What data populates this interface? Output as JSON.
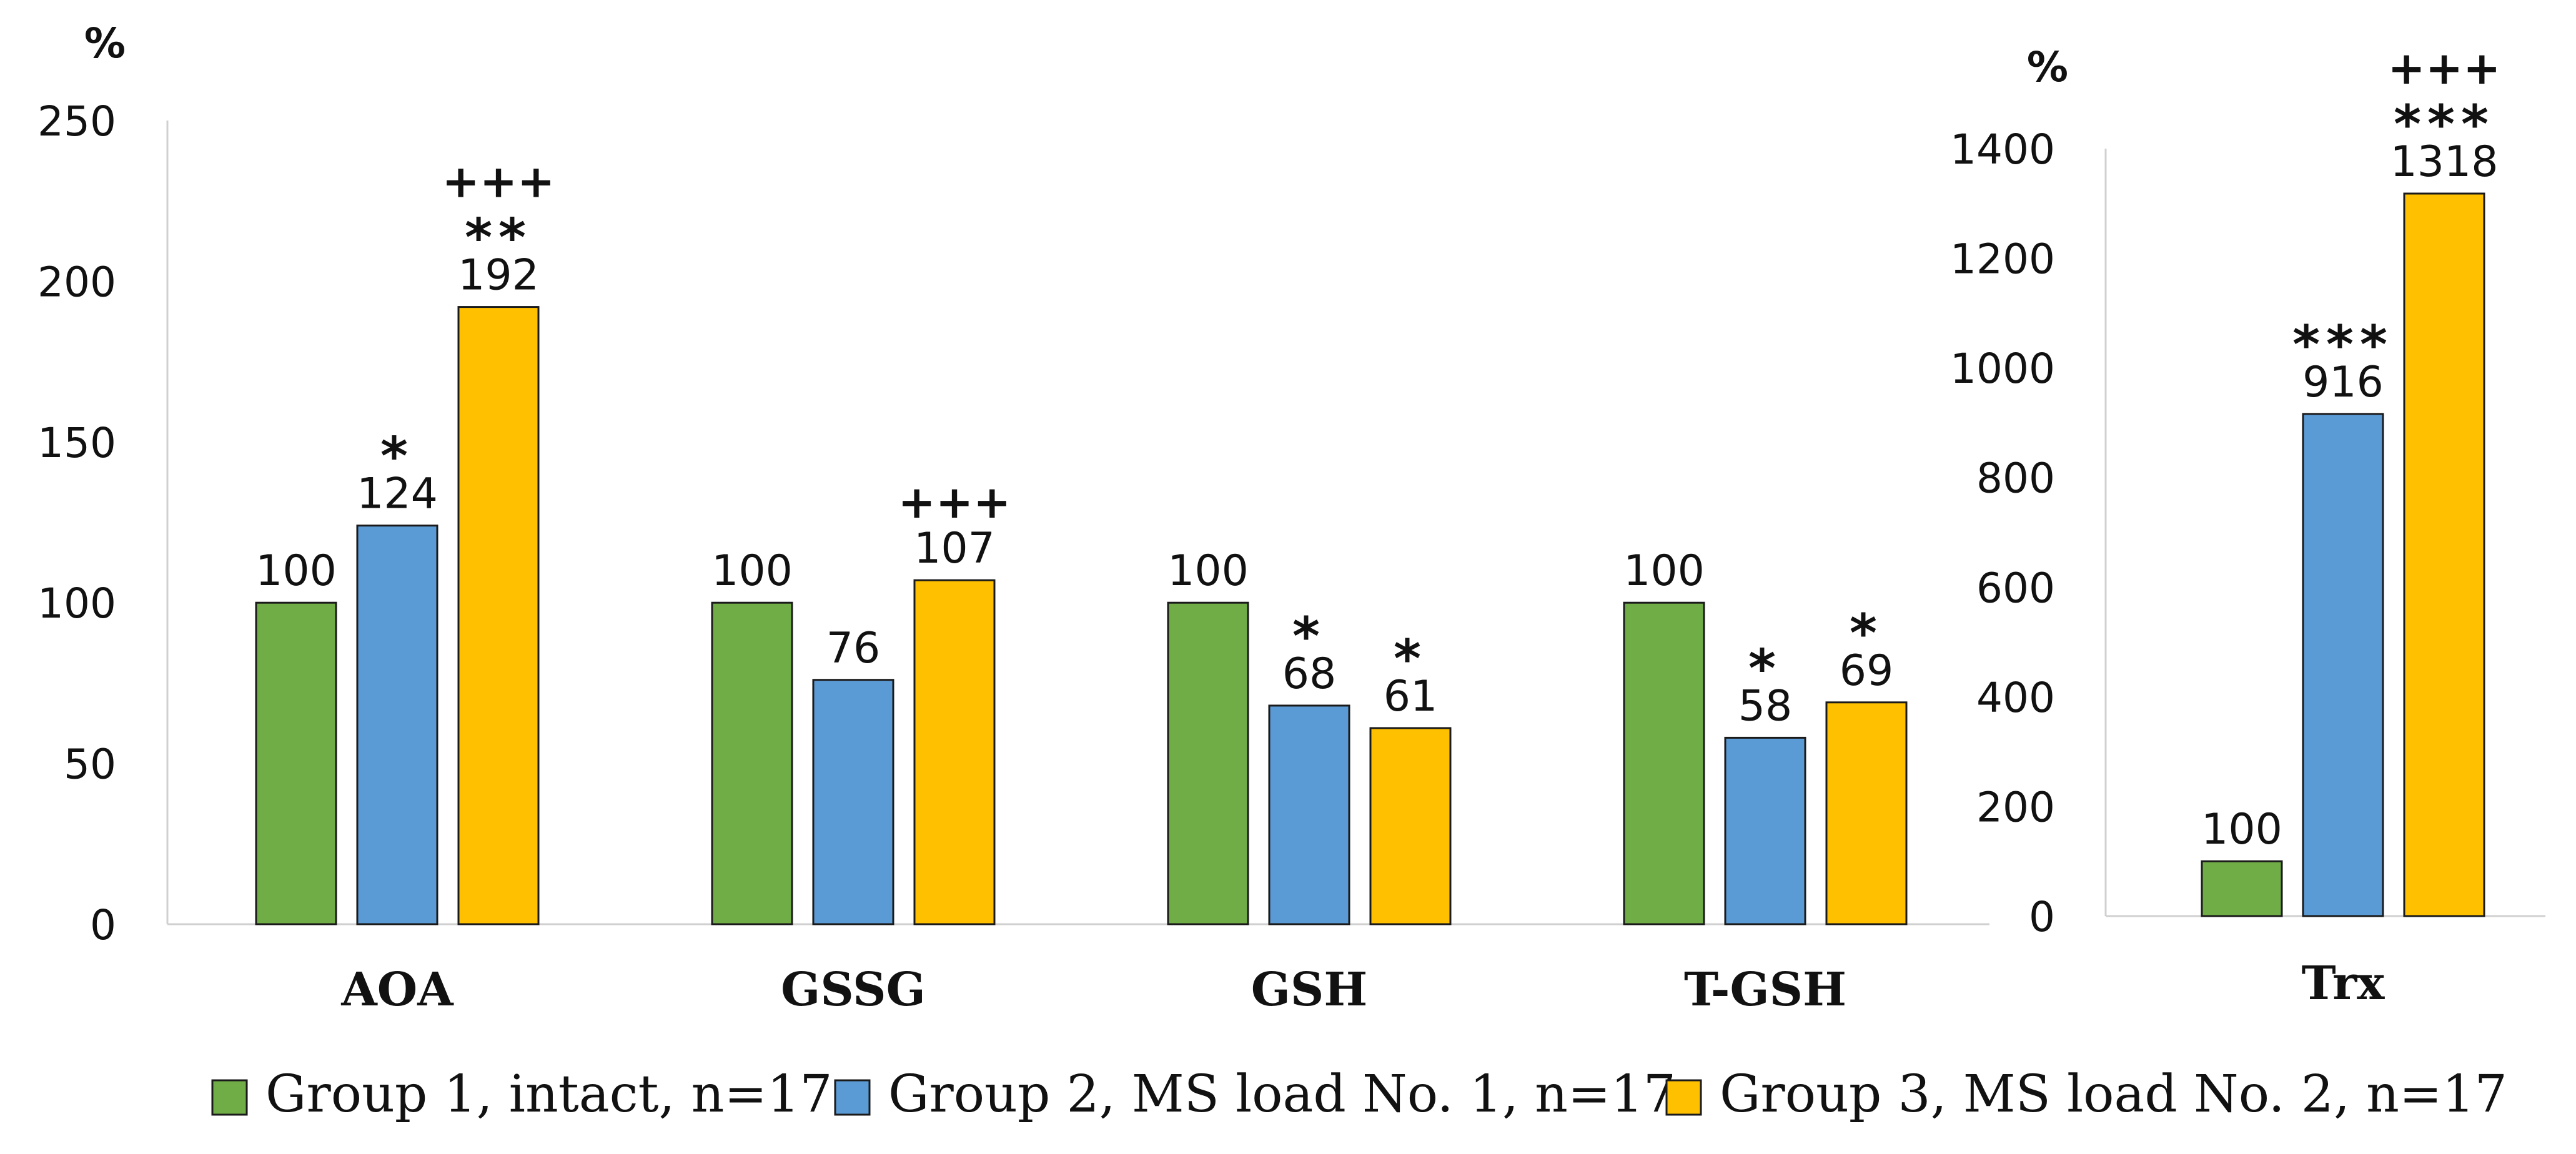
{
  "chart_data": [
    {
      "type": "bar",
      "unit_label": "%",
      "ylim": [
        0,
        250
      ],
      "yticks": [
        "0",
        "50",
        "100",
        "150",
        "200",
        "250"
      ],
      "categories": [
        "AOA",
        "GSSG",
        "GSH",
        "T-GSH"
      ],
      "series": [
        {
          "name": "Group 1, intact, n=17",
          "color": "#70AD47",
          "values": [
            100,
            100,
            100,
            100
          ]
        },
        {
          "name": "Group 2, MS load No. 1, n=17",
          "color": "#5B9BD5",
          "values": [
            124,
            76,
            68,
            58
          ]
        },
        {
          "name": "Group 3, MS load No. 2, n=17",
          "color": "#FFC000",
          "values": [
            192,
            107,
            61,
            69
          ]
        }
      ],
      "value_labels": [
        [
          "100",
          "100",
          "100",
          "100"
        ],
        [
          "124",
          "76",
          "68",
          "58"
        ],
        [
          "192",
          "107",
          "61",
          "69"
        ]
      ],
      "significance": [
        [
          [],
          [],
          [],
          []
        ],
        [
          [
            "*"
          ],
          [],
          [
            "*"
          ],
          [
            "*"
          ]
        ],
        [
          [
            "+++",
            "**"
          ],
          [
            "+++"
          ],
          [
            "*"
          ],
          [
            "*"
          ]
        ]
      ],
      "grid": false
    },
    {
      "type": "bar",
      "unit_label": "%",
      "ylim": [
        0,
        1400
      ],
      "yticks": [
        "0",
        "200",
        "400",
        "600",
        "800",
        "1000",
        "1200",
        "1400"
      ],
      "categories": [
        "Trx"
      ],
      "series": [
        {
          "name": "Group 1, intact, n=17",
          "color": "#70AD47",
          "values": [
            100
          ]
        },
        {
          "name": "Group 2, MS load No. 1, n=17",
          "color": "#5B9BD5",
          "values": [
            916
          ]
        },
        {
          "name": "Group 3, MS load No. 2, n=17",
          "color": "#FFC000",
          "values": [
            1318
          ]
        }
      ],
      "value_labels": [
        [
          "100"
        ],
        [
          "916"
        ],
        [
          "1318"
        ]
      ],
      "significance": [
        [
          []
        ],
        [
          [
            "***"
          ]
        ],
        [
          [
            "+++",
            "***"
          ]
        ]
      ],
      "grid": false
    }
  ],
  "legend": {
    "position": "bottom",
    "items": [
      {
        "label": "Group 1, intact, n=17",
        "color": "#70AD47"
      },
      {
        "label": "Group 2, MS load No. 1, n=17",
        "color": "#5B9BD5"
      },
      {
        "label": "Group 3, MS load No. 2, n=17",
        "color": "#FFC000"
      }
    ]
  }
}
